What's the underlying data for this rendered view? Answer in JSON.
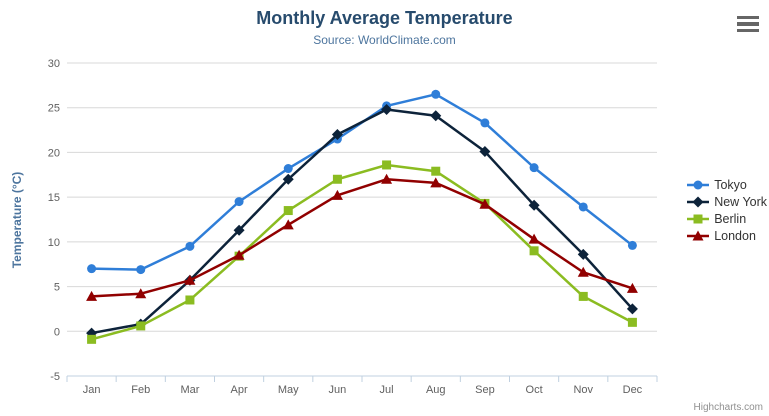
{
  "header": {
    "title": "Monthly Average Temperature",
    "subtitle": "Source: WorldClimate.com"
  },
  "chart_data": {
    "type": "line",
    "title": "Monthly Average Temperature",
    "subtitle": "Source: WorldClimate.com",
    "categories": [
      "Jan",
      "Feb",
      "Mar",
      "Apr",
      "May",
      "Jun",
      "Jul",
      "Aug",
      "Sep",
      "Oct",
      "Nov",
      "Dec"
    ],
    "xlabel": "",
    "ylabel": "Temperature (°C)",
    "ylim": [
      -5,
      30
    ],
    "yticks": [
      30,
      25,
      20,
      15,
      10,
      5,
      0,
      -5
    ],
    "grid": "horizontal",
    "legend_position": "right",
    "series": [
      {
        "name": "Tokyo",
        "color": "#2f7ed8",
        "marker": "circle",
        "values": [
          7.0,
          6.9,
          9.5,
          14.5,
          18.2,
          21.5,
          25.2,
          26.5,
          23.3,
          18.3,
          13.9,
          9.6
        ]
      },
      {
        "name": "New York",
        "color": "#0d233a",
        "marker": "diamond",
        "values": [
          -0.2,
          0.8,
          5.7,
          11.3,
          17.0,
          22.0,
          24.8,
          24.1,
          20.1,
          14.1,
          8.6,
          2.5
        ]
      },
      {
        "name": "Berlin",
        "color": "#8bbc21",
        "marker": "square",
        "values": [
          -0.9,
          0.6,
          3.5,
          8.4,
          13.5,
          17.0,
          18.6,
          17.9,
          14.3,
          9.0,
          3.9,
          1.0
        ]
      },
      {
        "name": "London",
        "color": "#910000",
        "marker": "triangle",
        "values": [
          3.9,
          4.2,
          5.7,
          8.5,
          11.9,
          15.2,
          17.0,
          16.6,
          14.2,
          10.3,
          6.6,
          4.8
        ]
      }
    ]
  },
  "colors": {
    "grid_line": "#d8d8d8",
    "axis_line": "#c0d0e0",
    "axis_label": "#606060",
    "title": "#274b6d",
    "subtitle": "#4d759e",
    "axis_title": "#4d759e",
    "legend_text": "#333333",
    "credits_text": "#909090",
    "export_icon": "#666666"
  },
  "icons": {
    "export_menu": "hamburger-icon"
  },
  "credits": {
    "text": "Highcharts.com"
  }
}
